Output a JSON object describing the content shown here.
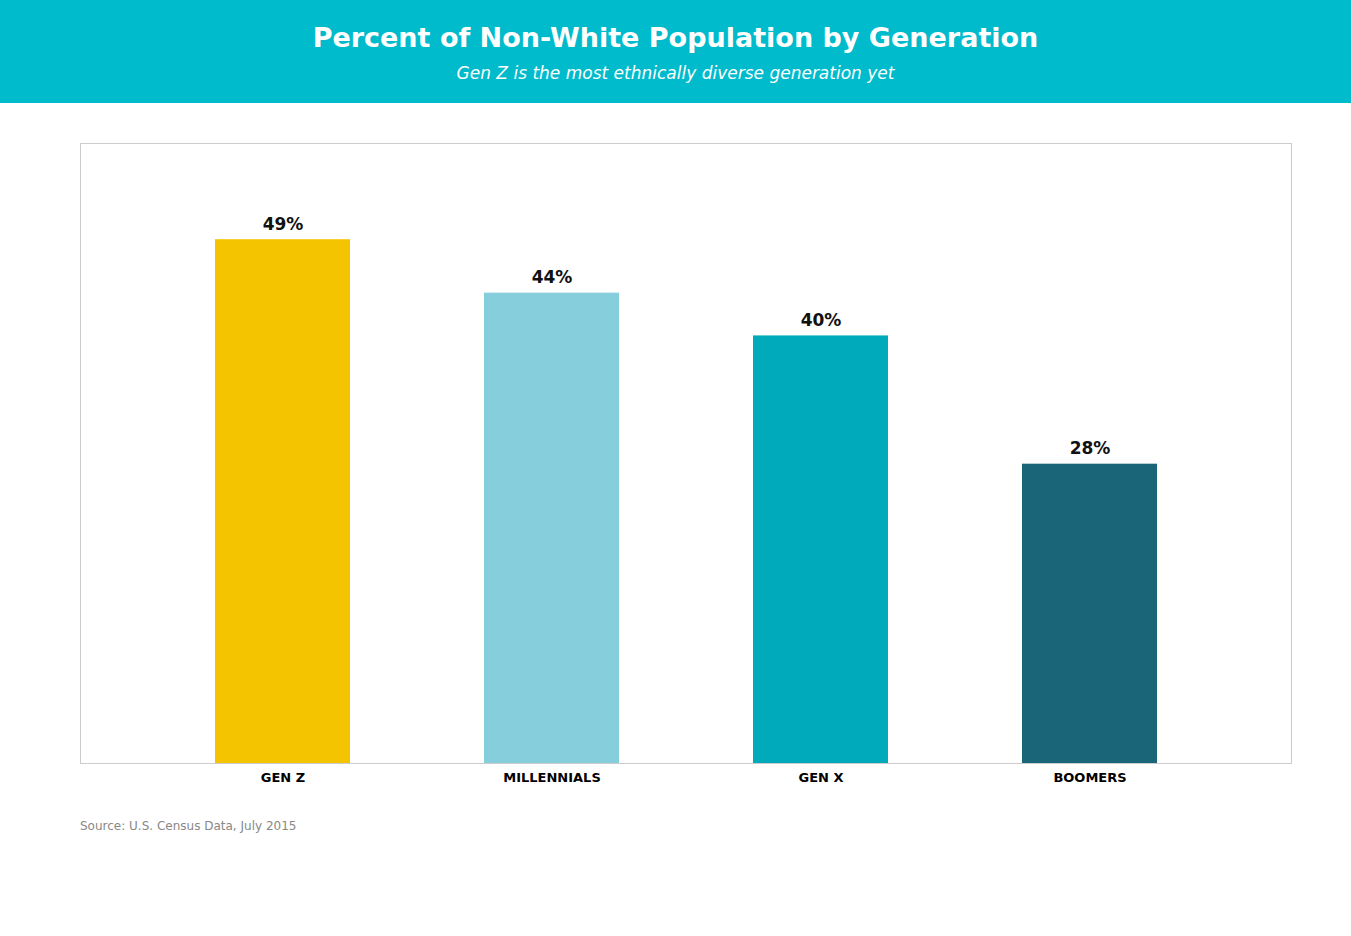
{
  "chart_data": {
    "type": "bar",
    "title": "Percent of Non-White Population by Generation",
    "subtitle": "Gen Z is the most ethnically diverse generation yet",
    "categories": [
      "GEN Z",
      "MILLENNIALS",
      "GEN X",
      "BOOMERS"
    ],
    "values": [
      49,
      44,
      40,
      28
    ],
    "value_labels": [
      "49%",
      "44%",
      "40%",
      "28%"
    ],
    "data_labels": true,
    "colors": [
      "#F5C400",
      "#87CEDC",
      "#00AABA",
      "#1A6678"
    ],
    "ylim": [
      0,
      58
    ],
    "tick_labels": "x",
    "grid": false,
    "annotations": [
      "Source: U.S. Census Data, July 2015"
    ]
  }
}
